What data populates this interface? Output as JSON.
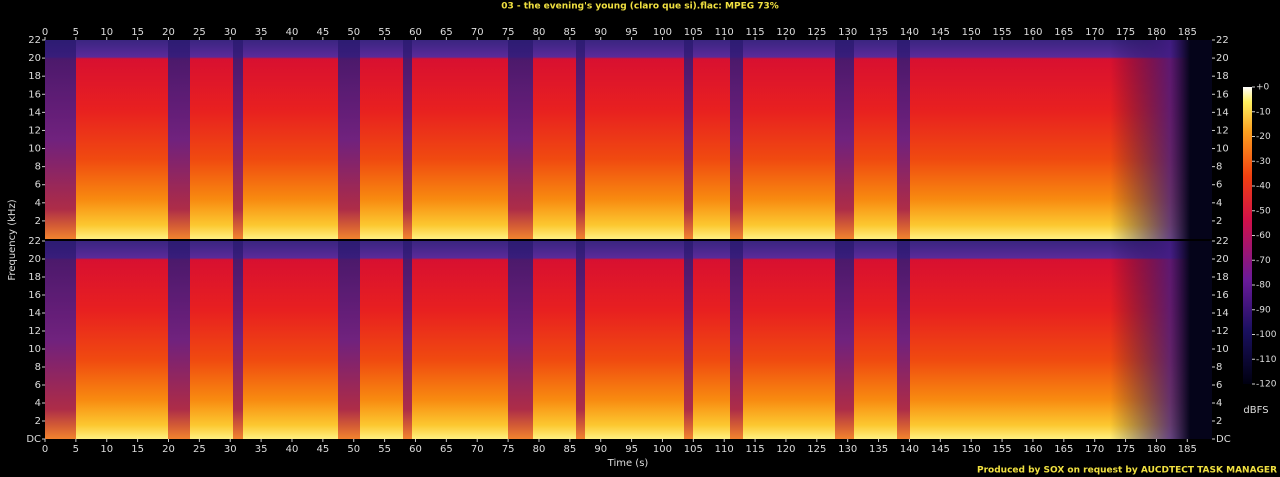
{
  "title": "03 - the evening's young (claro que si).flac: MPEG 73%",
  "footer": "Produced by SOX on request by AUCDTECT TASK MANAGER",
  "chart_data": {
    "type": "spectrogram",
    "xlabel": "Time (s)",
    "ylabel": "Frequency (kHz)",
    "xlim": [
      0,
      189
    ],
    "xticks": [
      0,
      5,
      10,
      15,
      20,
      25,
      30,
      35,
      40,
      45,
      50,
      55,
      60,
      65,
      70,
      75,
      80,
      85,
      90,
      95,
      100,
      105,
      110,
      115,
      120,
      125,
      130,
      135,
      140,
      145,
      150,
      155,
      160,
      165,
      170,
      175,
      180,
      185
    ],
    "channels": [
      {
        "ylim": [
          0,
          22
        ],
        "yticks": [
          2,
          4,
          6,
          8,
          10,
          12,
          14,
          16,
          18,
          20,
          22
        ]
      },
      {
        "ylim": [
          0,
          22
        ],
        "yticks": [
          {
            "value": 0,
            "label": "DC"
          },
          2,
          4,
          6,
          8,
          10,
          12,
          14,
          16,
          18,
          20,
          22
        ]
      }
    ],
    "colorbar": {
      "label": "dBFS",
      "lim": [
        -120,
        0
      ],
      "ticks": [
        {
          "value": 0,
          "label": "+0"
        },
        -10,
        -20,
        -30,
        -40,
        -50,
        -60,
        -70,
        -80,
        -90,
        -100,
        -110,
        -120
      ]
    }
  }
}
